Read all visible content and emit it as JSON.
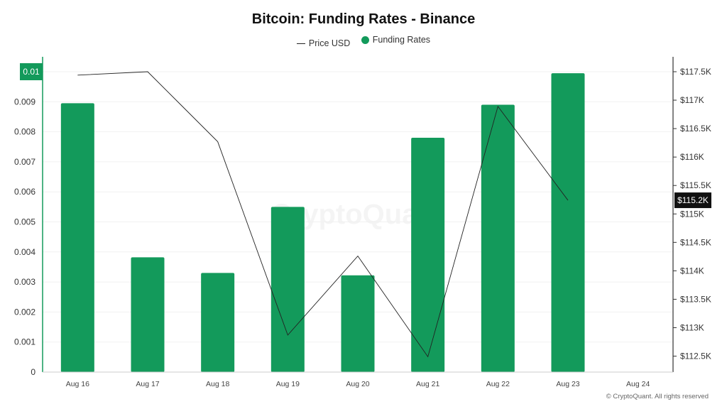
{
  "chart_data": {
    "type": "bar",
    "title": "Bitcoin: Funding Rates - Binance",
    "categories": [
      "Aug 16",
      "Aug 17",
      "Aug 18",
      "Aug 19",
      "Aug 20",
      "Aug 21",
      "Aug 22",
      "Aug 23",
      "Aug 24"
    ],
    "series": [
      {
        "name": "Funding Rates",
        "type": "bar",
        "axis": "left",
        "color": "#139A5B",
        "values": [
          0.00895,
          0.00382,
          0.0033,
          0.0055,
          0.00322,
          0.0078,
          0.0089,
          0.00995,
          null
        ]
      },
      {
        "name": "Price USD",
        "type": "line",
        "axis": "right",
        "color": "#222222",
        "values": [
          117440,
          117500,
          116270,
          112870,
          114260,
          112490,
          116890,
          115240,
          null
        ]
      }
    ],
    "y_left": {
      "ylim": [
        0,
        0.01
      ],
      "ticks": [
        "0",
        "0.001",
        "0.002",
        "0.003",
        "0.004",
        "0.005",
        "0.006",
        "0.007",
        "0.008",
        "0.009",
        "0.01"
      ],
      "tick_values": [
        0,
        0.001,
        0.002,
        0.003,
        0.004,
        0.005,
        0.006,
        0.007,
        0.008,
        0.009,
        0.01
      ],
      "highlight_label": "0.01",
      "axis_color": "#139A5B"
    },
    "y_right": {
      "ylim": [
        112220,
        117500
      ],
      "ticks": [
        "$112.5K",
        "$113K",
        "$113.5K",
        "$114K",
        "$114.5K",
        "$115K",
        "$115.5K",
        "$116K",
        "$116.5K",
        "$117K",
        "$117.5K"
      ],
      "tick_values": [
        112500,
        113000,
        113500,
        114000,
        114500,
        115000,
        115500,
        116000,
        116500,
        117000,
        117500
      ],
      "current_label": "$115.2K",
      "current_value": 115240
    },
    "grid": true,
    "legend_position": "top-center",
    "watermark": "CryptoQuant"
  },
  "legend": {
    "price_label": "Price USD",
    "funding_label": "Funding Rates"
  },
  "copyright": "© CryptoQuant. All rights reserved"
}
